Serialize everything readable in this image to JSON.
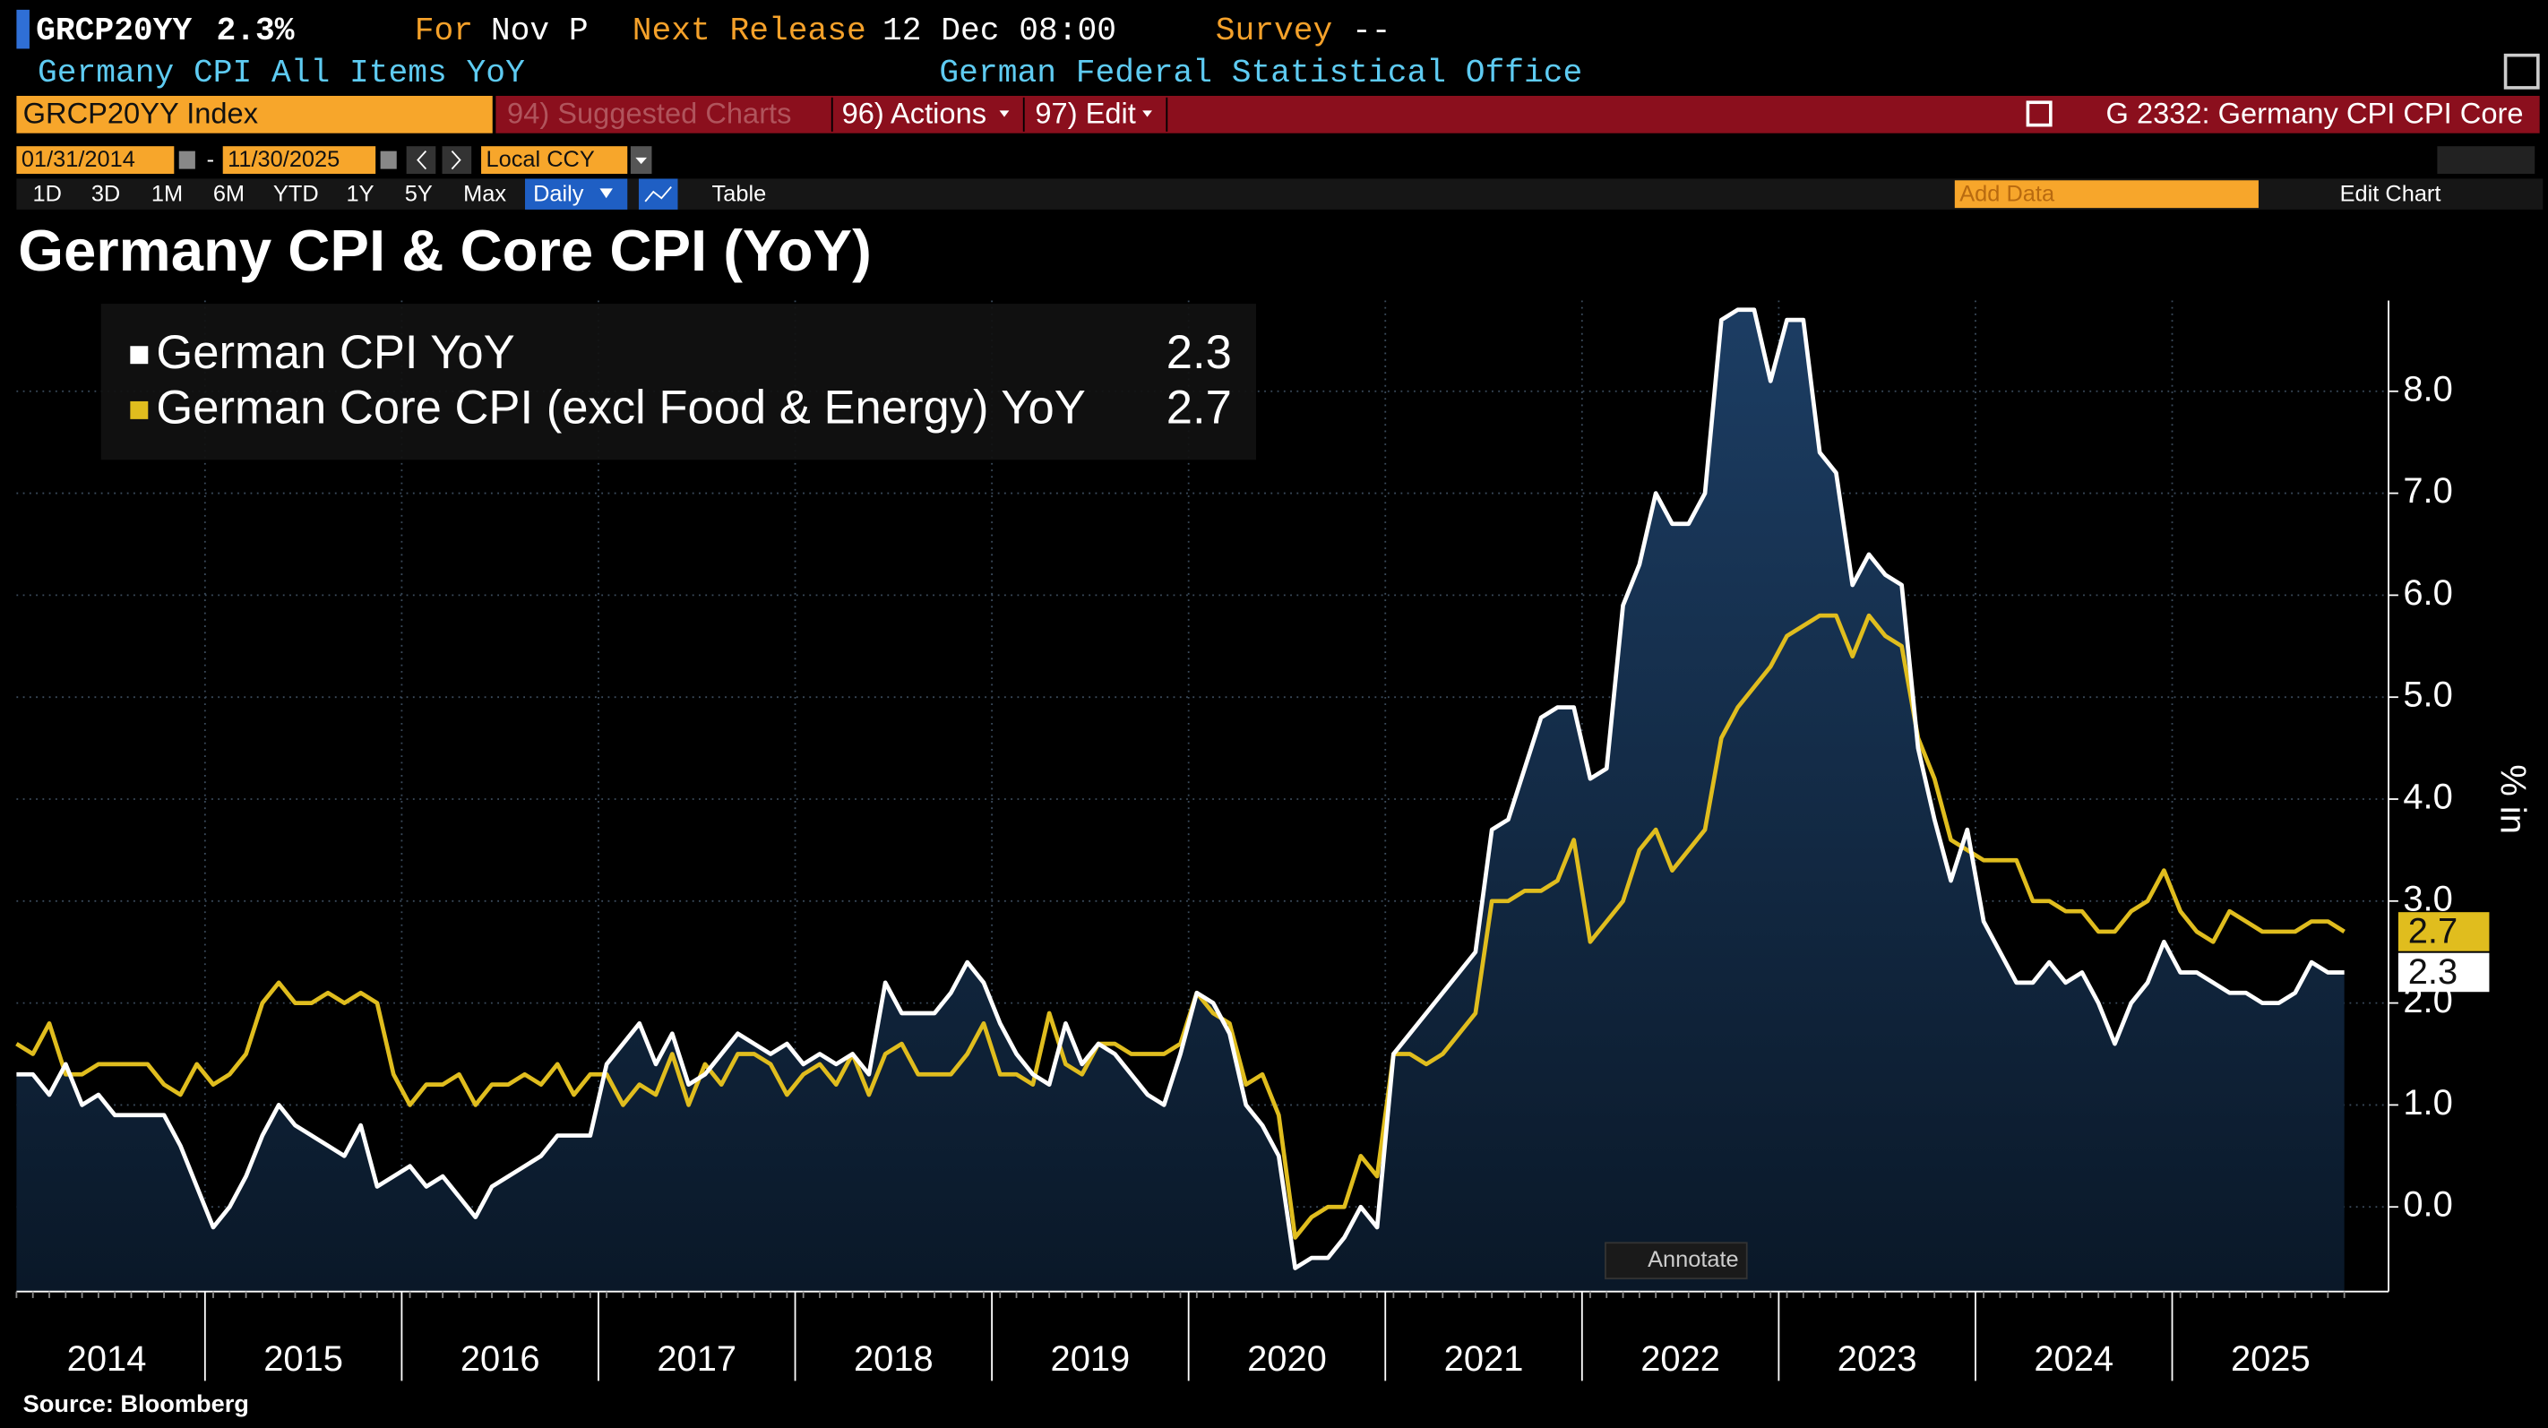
{
  "header": {
    "ticker": "GRCP20YY",
    "last": "2.3%",
    "for_label": "For",
    "for_value": "Nov P",
    "release_label": "Next Release",
    "release_value": "12 Dec 08:00",
    "survey_label": "Survey",
    "survey_value": "--",
    "description": "Germany CPI All Items YoY",
    "source_org": "German Federal Statistical Office"
  },
  "toolbar": {
    "security": "GRCP20YY Index",
    "suggested": "94) Suggested Charts",
    "actions": "96) Actions",
    "edit": "97) Edit",
    "chart_id": "G 2332: Germany CPI CPI Core",
    "start_date": "01/31/2014",
    "date_sep": "-",
    "end_date": "11/30/2025",
    "currency": "Local CCY",
    "periods": [
      "1D",
      "3D",
      "1M",
      "6M",
      "YTD",
      "1Y",
      "5Y",
      "Max"
    ],
    "frequency": "Daily",
    "table": "Table",
    "add_data": "Add Data",
    "edit_chart": "Edit Chart",
    "annotate": "Annotate"
  },
  "chart_data": {
    "type": "line",
    "title": "Germany CPI & Core CPI (YoY)",
    "y_label": "% in",
    "source": "Source: Bloomberg",
    "grid": true,
    "categories": [
      null,
      null,
      null,
      null,
      null,
      "2014",
      null,
      null,
      null,
      null,
      null,
      null,
      null,
      null,
      null,
      null,
      null,
      "2015",
      null,
      null,
      null,
      null,
      null,
      null,
      null,
      null,
      null,
      null,
      null,
      "2016",
      null,
      null,
      null,
      null,
      null,
      null,
      null,
      null,
      null,
      null,
      null,
      "2017",
      null,
      null,
      null,
      null,
      null,
      null,
      null,
      null,
      null,
      null,
      null,
      "2018",
      null,
      null,
      null,
      null,
      null,
      null,
      null,
      null,
      null,
      null,
      null,
      "2019",
      null,
      null,
      null,
      null,
      null,
      null,
      null,
      null,
      null,
      null,
      null,
      "2020",
      null,
      null,
      null,
      null,
      null,
      null,
      null,
      null,
      null,
      null,
      null,
      "2021",
      null,
      null,
      null,
      null,
      null,
      null,
      null,
      null,
      null,
      null,
      null,
      "2022",
      null,
      null,
      null,
      null,
      null,
      null,
      null,
      null,
      null,
      null,
      null,
      "2023",
      null,
      null,
      null,
      null,
      null,
      null,
      null,
      null,
      null,
      null,
      null,
      "2024",
      null,
      null,
      null,
      null,
      null,
      null,
      null,
      null,
      null,
      null,
      null,
      "2025",
      null,
      null,
      null,
      null,
      null
    ],
    "ylim": [
      -0.83,
      8.89
    ],
    "yticks": [
      {
        "value": 0,
        "label": "0.0"
      },
      {
        "value": 1,
        "label": "1.0"
      },
      {
        "value": 2,
        "label": "2.0"
      },
      {
        "value": 3,
        "label": "3.0"
      },
      {
        "value": 4,
        "label": "4.0"
      },
      {
        "value": 5,
        "label": "5.0"
      },
      {
        "value": 6,
        "label": "6.0"
      },
      {
        "value": 7,
        "label": "7.0"
      },
      {
        "value": 8,
        "label": "8.0"
      }
    ],
    "series": [
      {
        "name": "German CPI YoY",
        "color": "#ffffff",
        "area_color": "#1c3d63",
        "values": [
          1.3,
          1.3,
          1.1,
          1.4,
          1.0,
          1.1,
          0.9,
          0.9,
          0.9,
          0.9,
          0.6,
          0.2,
          -0.2,
          0.0,
          0.3,
          0.7,
          1.0,
          0.8,
          0.7,
          0.6,
          0.5,
          0.8,
          0.2,
          0.3,
          0.4,
          0.2,
          0.3,
          0.1,
          -0.1,
          0.2,
          0.3,
          0.4,
          0.5,
          0.7,
          0.7,
          0.7,
          1.4,
          1.6,
          1.8,
          1.4,
          1.7,
          1.2,
          1.3,
          1.5,
          1.7,
          1.6,
          1.5,
          1.6,
          1.4,
          1.5,
          1.4,
          1.5,
          1.3,
          2.2,
          1.9,
          1.9,
          1.9,
          2.1,
          2.4,
          2.2,
          1.8,
          1.5,
          1.3,
          1.2,
          1.8,
          1.4,
          1.6,
          1.5,
          1.3,
          1.1,
          1.0,
          1.5,
          2.1,
          2.0,
          1.7,
          1.0,
          0.8,
          0.5,
          -0.6,
          -0.5,
          -0.5,
          -0.3,
          0.0,
          -0.2,
          1.5,
          1.7,
          1.9,
          2.1,
          2.3,
          2.5,
          3.7,
          3.8,
          4.3,
          4.8,
          4.9,
          4.9,
          4.2,
          4.3,
          5.9,
          6.3,
          7.0,
          6.7,
          6.7,
          7.0,
          8.7,
          8.8,
          8.8,
          8.1,
          8.7,
          8.7,
          7.4,
          7.2,
          6.1,
          6.4,
          6.2,
          6.1,
          4.5,
          3.8,
          3.2,
          3.7,
          2.8,
          2.5,
          2.2,
          2.2,
          2.4,
          2.2,
          2.3,
          2.0,
          1.6,
          2.0,
          2.2,
          2.6,
          2.3,
          2.3,
          2.2,
          2.1,
          2.1,
          2.0,
          2.0,
          2.1,
          2.4,
          2.3,
          2.3
        ]
      },
      {
        "name": "German Core CPI (excl Food & Energy) YoY",
        "color": "#e0bd1e",
        "values": [
          1.6,
          1.5,
          1.8,
          1.3,
          1.3,
          1.4,
          1.4,
          1.4,
          1.4,
          1.2,
          1.1,
          1.4,
          1.2,
          1.3,
          1.5,
          2.0,
          2.2,
          2.0,
          2.0,
          2.1,
          2.0,
          2.1,
          2.0,
          1.3,
          1.0,
          1.2,
          1.2,
          1.3,
          1.0,
          1.2,
          1.2,
          1.3,
          1.2,
          1.4,
          1.1,
          1.3,
          1.3,
          1.0,
          1.2,
          1.1,
          1.5,
          1.0,
          1.4,
          1.2,
          1.5,
          1.5,
          1.4,
          1.1,
          1.3,
          1.4,
          1.2,
          1.5,
          1.1,
          1.5,
          1.6,
          1.3,
          1.3,
          1.3,
          1.5,
          1.8,
          1.3,
          1.3,
          1.2,
          1.9,
          1.4,
          1.3,
          1.6,
          1.6,
          1.5,
          1.5,
          1.5,
          1.6,
          2.1,
          1.9,
          1.8,
          1.2,
          1.3,
          0.9,
          -0.3,
          -0.1,
          0.0,
          0.0,
          0.5,
          0.3,
          1.5,
          1.5,
          1.4,
          1.5,
          1.7,
          1.9,
          3.0,
          3.0,
          3.1,
          3.1,
          3.2,
          3.6,
          2.6,
          2.8,
          3.0,
          3.5,
          3.7,
          3.3,
          3.5,
          3.7,
          4.6,
          4.9,
          5.1,
          5.3,
          5.6,
          5.7,
          5.8,
          5.8,
          5.4,
          5.8,
          5.6,
          5.5,
          4.6,
          4.2,
          3.6,
          3.5,
          3.4,
          3.4,
          3.4,
          3.0,
          3.0,
          2.9,
          2.9,
          2.7,
          2.7,
          2.9,
          3.0,
          3.3,
          2.9,
          2.7,
          2.6,
          2.9,
          2.8,
          2.7,
          2.7,
          2.7,
          2.8,
          2.8,
          2.7
        ]
      }
    ]
  }
}
